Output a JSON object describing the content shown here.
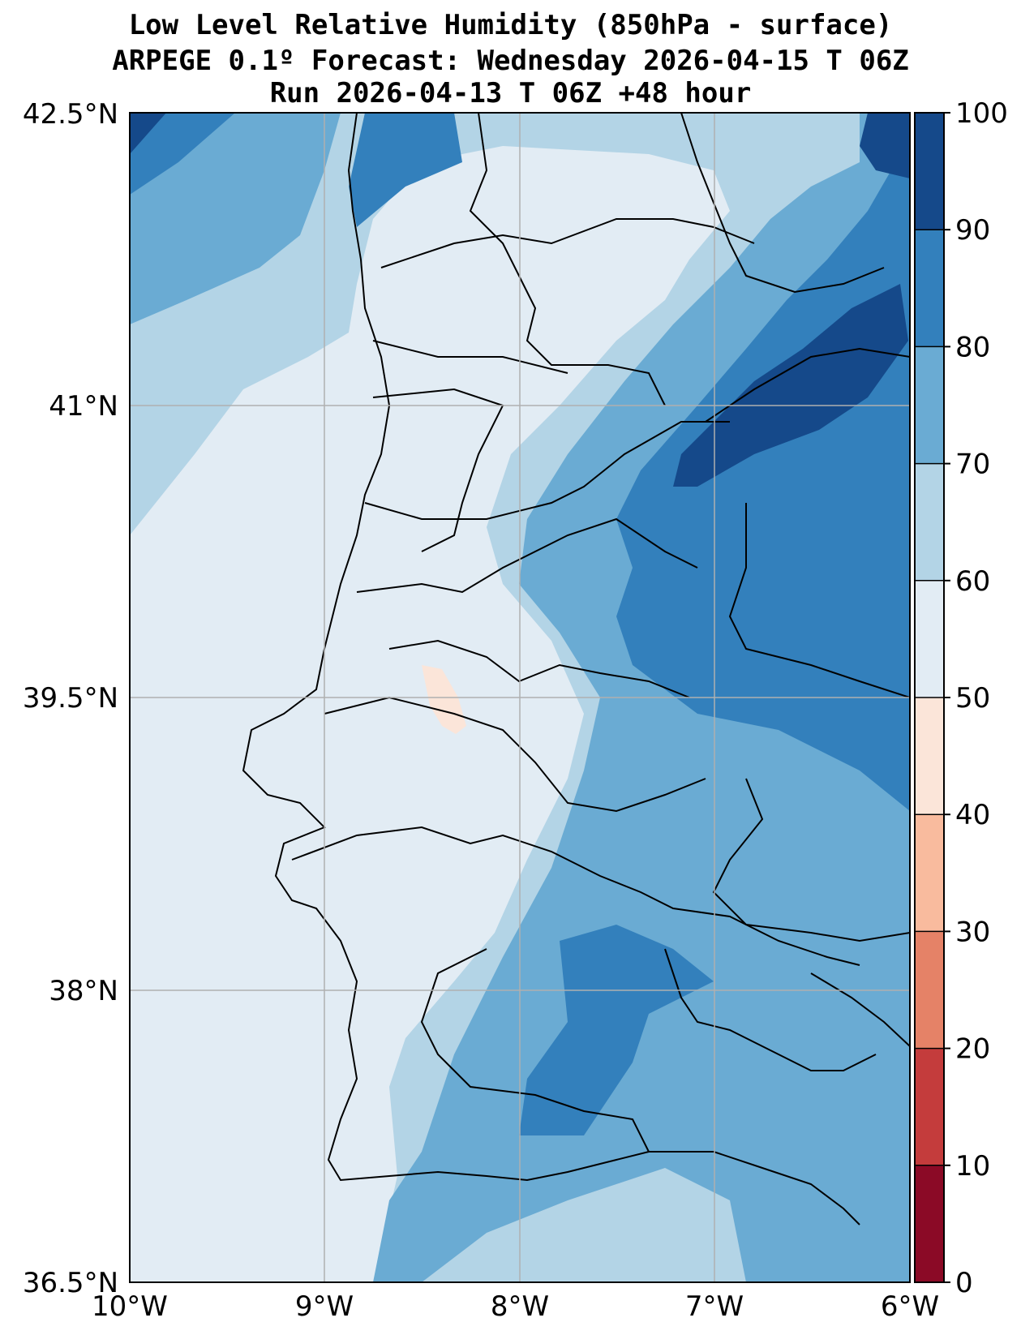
{
  "title": {
    "line1": "Low Level Relative Humidity (850hPa - surface)",
    "line2": "ARPEGE 0.1º Forecast: Wednesday 2026-04-15 T 06Z",
    "line3": "Run 2026-04-13 T 06Z +48 hour"
  },
  "map": {
    "lat_labels": [
      "42.5°N",
      "41°N",
      "39.5°N",
      "38°N",
      "36.5°N"
    ],
    "lon_labels": [
      "10°W",
      "9°W",
      "8°W",
      "7°W",
      "6°W"
    ]
  },
  "colorbar": {
    "ticks": [
      "0",
      "10",
      "20",
      "30",
      "40",
      "50",
      "60",
      "70",
      "80",
      "90",
      "100"
    ],
    "colors": [
      "#8b0a26",
      "#c43c3c",
      "#e58267",
      "#f9bb9e",
      "#fbe5d9",
      "#e2ecf4",
      "#b3d4e6",
      "#6aabd3",
      "#3380bc",
      "#15498a"
    ]
  }
}
